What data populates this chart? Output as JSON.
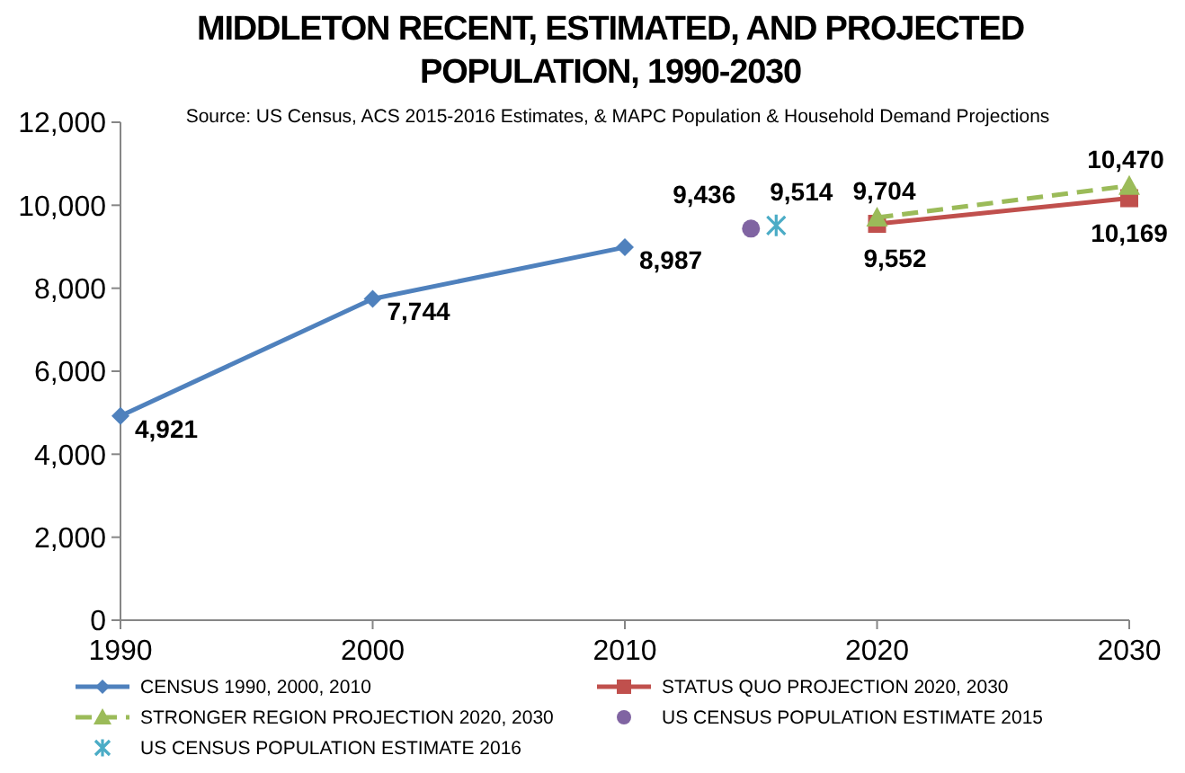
{
  "chart_data": {
    "type": "line",
    "title": "MIDDLETON RECENT, ESTIMATED, AND PROJECTED POPULATION, 1990-2030",
    "subtitle": "Source: US Census, ACS 2015-2016 Estimates, & MAPC Population & Household Demand Projections",
    "xlim": [
      1990,
      2030
    ],
    "xticks": [
      1990,
      2000,
      2010,
      2020,
      2030
    ],
    "ylim": [
      0,
      12000
    ],
    "yticks": [
      {
        "value": 0,
        "label": "0"
      },
      {
        "value": 2000,
        "label": "2,000"
      },
      {
        "value": 4000,
        "label": "4,000"
      },
      {
        "value": 6000,
        "label": "6,000"
      },
      {
        "value": 8000,
        "label": "8,000"
      },
      {
        "value": 10000,
        "label": "10,000"
      },
      {
        "value": 12000,
        "label": "12,000"
      }
    ],
    "grid": false,
    "legend": "bottom",
    "series": [
      {
        "name": "CENSUS 1990, 2000, 2010",
        "color": "#4f81bd",
        "marker": "diamond",
        "line_style": "solid",
        "x": [
          1990,
          2000,
          2010
        ],
        "values": [
          4921,
          7744,
          8987
        ],
        "value_labels": [
          "4,921",
          "7,744",
          "8,987"
        ]
      },
      {
        "name": "STATUS QUO PROJECTION 2020, 2030",
        "color": "#c0504d",
        "marker": "square",
        "line_style": "solid",
        "x": [
          2020,
          2030
        ],
        "values": [
          9552,
          10169
        ],
        "value_labels": [
          "9,552",
          "10,169"
        ]
      },
      {
        "name": "STRONGER REGION PROJECTION 2020, 2030",
        "color": "#9bbb59",
        "marker": "triangle",
        "line_style": "dashed",
        "x": [
          2020,
          2030
        ],
        "values": [
          9704,
          10470
        ],
        "value_labels": [
          "9,704",
          "10,470"
        ]
      },
      {
        "name": "US CENSUS POPULATION ESTIMATE 2015",
        "type": "scatter",
        "color": "#8064a2",
        "marker": "circle",
        "x": [
          2015
        ],
        "values": [
          9436
        ],
        "value_labels": [
          "9,436"
        ]
      },
      {
        "name": "US CENSUS POPULATION ESTIMATE 2016",
        "type": "scatter",
        "color": "#4bacc6",
        "marker": "cross",
        "x": [
          2016
        ],
        "values": [
          9514
        ],
        "value_labels": [
          "9,514"
        ]
      }
    ]
  }
}
